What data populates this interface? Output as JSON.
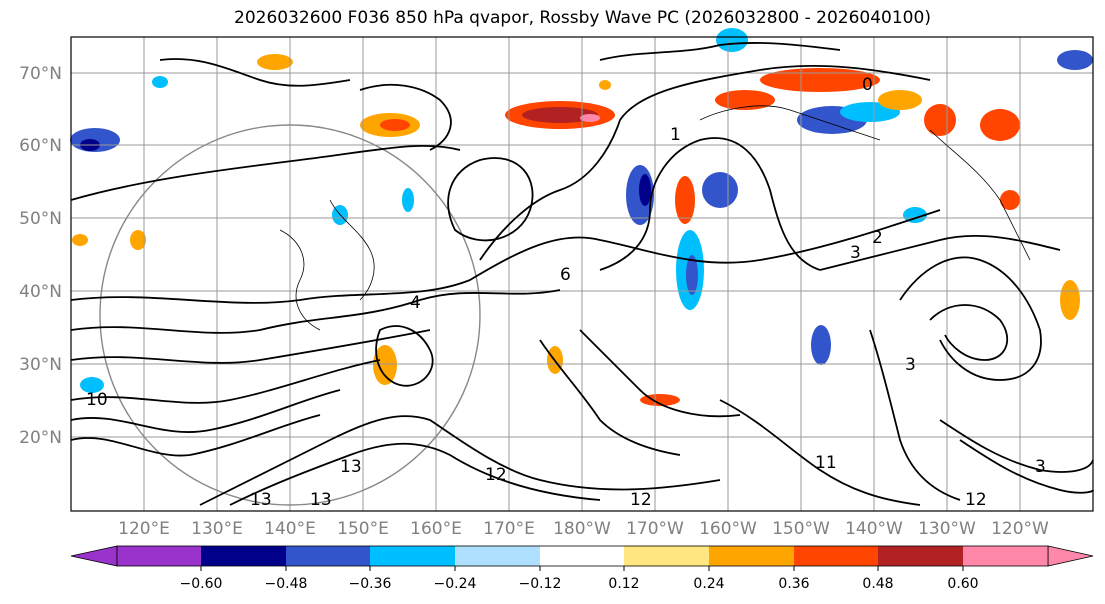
{
  "title": "2026032600 F036 850 hPa qvapor, Rossby Wave PC (2026032800 - 2026040100)",
  "lat_labels": [
    "70°N",
    "60°N",
    "50°N",
    "40°N",
    "30°N",
    "20°N"
  ],
  "lon_labels": [
    "120°E",
    "130°E",
    "140°E",
    "150°E",
    "160°E",
    "170°E",
    "180°W",
    "170°W",
    "160°W",
    "150°W",
    "140°W",
    "130°W",
    "120°W"
  ],
  "colorbar": {
    "colors": [
      "#9933cc",
      "#00008b",
      "#3355cc",
      "#00bfff",
      "#b0e0ff",
      "#ffffff",
      "#ffe680",
      "#ffa500",
      "#ff4500",
      "#b22222",
      "#ff88aa"
    ],
    "tick_labels": [
      "−0.60",
      "−0.48",
      "−0.36",
      "−0.24",
      "−0.12",
      "0.12",
      "0.24",
      "0.36",
      "0.48",
      "0.60"
    ]
  },
  "contour_labels": [
    "1",
    "2",
    "3",
    "4",
    "6",
    "10",
    "12",
    "13",
    "11",
    "0"
  ]
}
